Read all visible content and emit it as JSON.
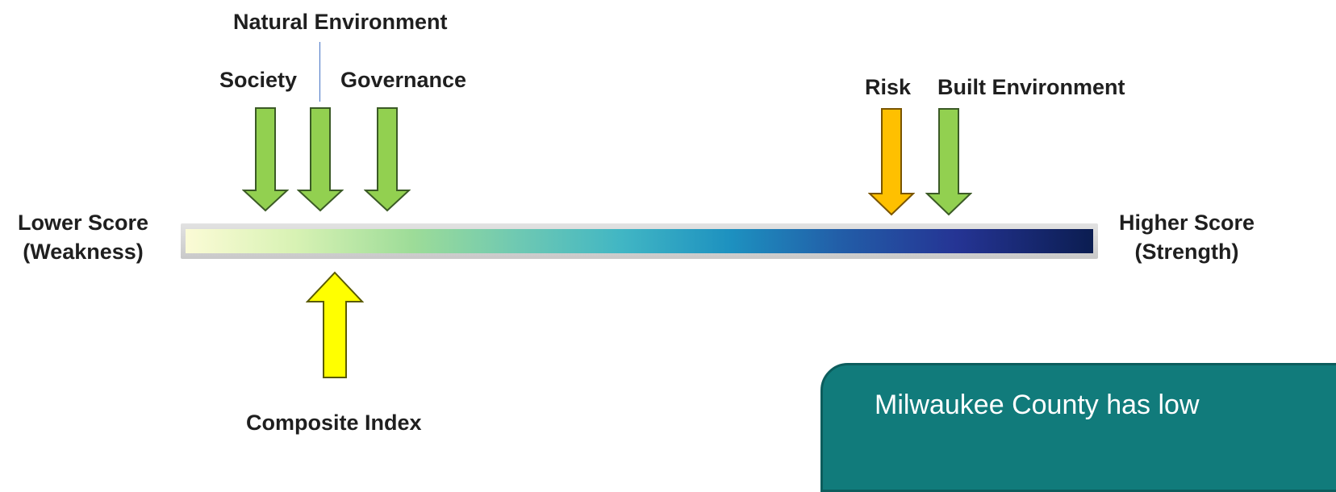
{
  "labels": {
    "natural_environment": "Natural Environment",
    "society": "Society",
    "governance": "Governance",
    "risk": "Risk",
    "built_environment": "Built Environment",
    "composite_index": "Composite Index"
  },
  "scale": {
    "low_line1": "Lower Score",
    "low_line2": "(Weakness)",
    "high_line1": "Higher Score",
    "high_line2": "(Strength)"
  },
  "callout": {
    "text": "Milwaukee County has low"
  },
  "colors": {
    "green_arrow": "#92d050",
    "orange_arrow": "#ffc000",
    "yellow_arrow": "#ffff00",
    "callout_bg": "#117b7b"
  }
}
